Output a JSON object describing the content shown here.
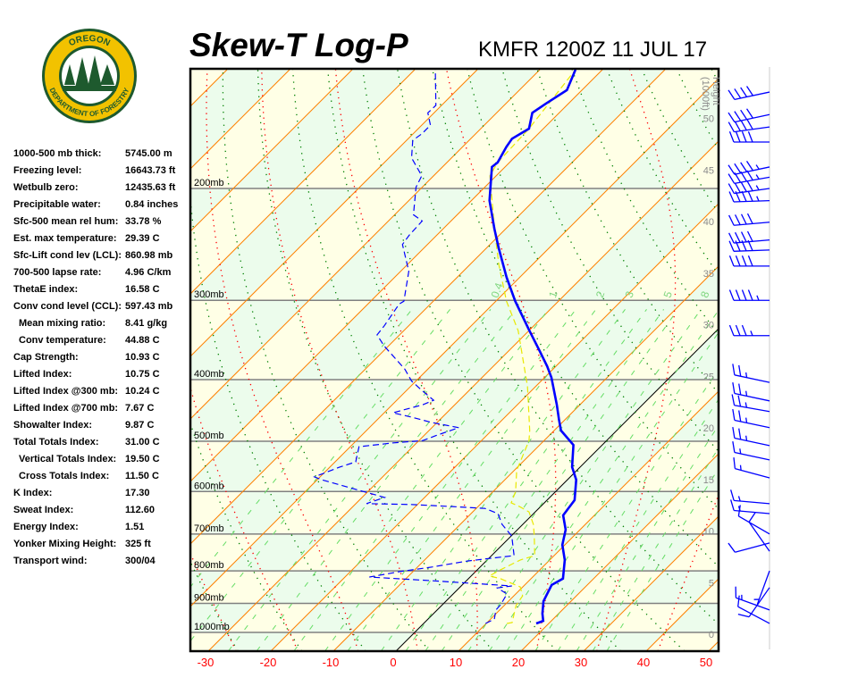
{
  "logo": {
    "text_top": "OREGON",
    "text_bottom": "DEPARTMENT OF FORESTRY"
  },
  "header": {
    "title": "Skew-T Log-P",
    "station": "KMFR 1200Z 11 JUL 17"
  },
  "stats": [
    {
      "label": "1000-500 mb thick:",
      "value": "5745.00 m"
    },
    {
      "label": "Freezing level:",
      "value": "16643.73 ft"
    },
    {
      "label": "Wetbulb zero:",
      "value": "12435.63 ft"
    },
    {
      "label": "Precipitable water:",
      "value": "0.84 inches"
    },
    {
      "label": "Sfc-500 mean rel hum:",
      "value": "33.78 %"
    },
    {
      "label": "Est. max temperature:",
      "value": "29.39 C"
    },
    {
      "label": "Sfc-Lift cond lev (LCL):",
      "value": "860.98 mb"
    },
    {
      "label": "700-500 lapse rate:",
      "value": "4.96 C/km"
    },
    {
      "label": "ThetaE index:",
      "value": "16.58 C"
    },
    {
      "label": "Conv cond level (CCL):",
      "value": "597.43 mb"
    },
    {
      "label": "Mean mixing ratio:",
      "value": "8.41 g/kg",
      "indent": true
    },
    {
      "label": "Conv temperature:",
      "value": "44.88 C",
      "indent": true
    },
    {
      "label": "Cap Strength:",
      "value": "10.93 C"
    },
    {
      "label": "Lifted Index:",
      "value": "10.75 C"
    },
    {
      "label": "Lifted Index @300 mb:",
      "value": "10.24 C"
    },
    {
      "label": "Lifted Index @700 mb:",
      "value": "7.67 C"
    },
    {
      "label": "Showalter Index:",
      "value": "9.87 C"
    },
    {
      "label": "Total Totals Index:",
      "value": "31.00 C"
    },
    {
      "label": "Vertical Totals Index:",
      "value": "19.50 C",
      "indent": true
    },
    {
      "label": "Cross Totals Index:",
      "value": "11.50 C",
      "indent": true
    },
    {
      "label": "K Index:",
      "value": "17.30"
    },
    {
      "label": "Sweat Index:",
      "value": "112.60"
    },
    {
      "label": "Energy Index:",
      "value": "1.51"
    },
    {
      "label": "Yonker Mixing Height:",
      "value": "325 ft"
    },
    {
      "label": "Transport wind:",
      "value": "300/04"
    }
  ],
  "chart_data": {
    "type": "line",
    "title": "Skew-T Log-P",
    "x_axis": {
      "ticks": [
        -30,
        -20,
        -10,
        0,
        10,
        20,
        30,
        40,
        50
      ],
      "range_at_bottom": [
        -33,
        52
      ]
    },
    "pressure_axis": {
      "scale": "log",
      "range": [
        1070,
        130
      ],
      "lines": [
        200,
        300,
        400,
        500,
        600,
        700,
        800,
        900,
        1000
      ],
      "labels": [
        "200mb",
        "300mb",
        "400mb",
        "500mb",
        "600mb",
        "700mb",
        "800mb",
        "900mb",
        "1000mb"
      ]
    },
    "height_axis": {
      "label_line1": "Height",
      "label_line2": "(1000ft)",
      "ticks": [
        0,
        5,
        10,
        15,
        20,
        25,
        30,
        35,
        40,
        45,
        50
      ]
    },
    "isotherm_step": 10,
    "dry_adiabat_step": 10,
    "moist_adiabats_1000mb": [
      -30,
      -20,
      -10,
      0,
      10,
      20,
      30,
      40
    ],
    "mixing_ratio_lines": [
      0.1,
      0.2,
      0.4,
      0.6,
      1,
      1.5,
      2,
      3,
      4,
      5,
      6,
      8,
      10,
      12,
      16,
      20,
      24,
      28,
      32
    ],
    "mixing_ratio_labels": [
      "0.4",
      "1",
      "2",
      "3",
      "5",
      "8"
    ],
    "colors": {
      "temperature": "#0000ff",
      "dewpoint": "#0000ff",
      "wetbulb": "#e8e800",
      "isotherm": "#ff8000",
      "zero_isotherm": "#000000",
      "dry_adiabat": "#008000",
      "moist_adiabat": "#ff0000",
      "mixing_ratio": "#66dd66",
      "pressure_line": "#808080",
      "band_a": "#ffffe6",
      "band_b": "#ecfcec",
      "wind": "#0000ff"
    },
    "series": [
      {
        "id": "temperature",
        "style": "solid-thick",
        "points": [
          [
            968,
            18.0
          ],
          [
            959,
            18.7
          ],
          [
            934,
            17.4
          ],
          [
            893,
            15.6
          ],
          [
            842,
            14.3
          ],
          [
            823,
            15.1
          ],
          [
            769,
            12.4
          ],
          [
            728,
            9.6
          ],
          [
            689,
            7.7
          ],
          [
            654,
            5.0
          ],
          [
            619,
            4.4
          ],
          [
            575,
            1.4
          ],
          [
            549,
            -1.3
          ],
          [
            507,
            -4.6
          ],
          [
            481,
            -8.9
          ],
          [
            463,
            -10.9
          ],
          [
            438,
            -13.7
          ],
          [
            397,
            -18.9
          ],
          [
            381,
            -21.4
          ],
          [
            359,
            -25.3
          ],
          [
            335,
            -29.9
          ],
          [
            301,
            -36.9
          ],
          [
            276,
            -42.1
          ],
          [
            248,
            -48.1
          ],
          [
            232,
            -51.7
          ],
          [
            209,
            -57.1
          ],
          [
            185,
            -62.1
          ],
          [
            182,
            -61.9
          ],
          [
            172,
            -63.0
          ],
          [
            167,
            -63.4
          ],
          [
            161,
            -62.3
          ],
          [
            152,
            -64.3
          ],
          [
            147,
            -63.6
          ],
          [
            140,
            -62.4
          ],
          [
            130,
            -64.3
          ]
        ]
      },
      {
        "id": "dewpoint",
        "style": "dashed",
        "points": [
          [
            968,
            9.9
          ],
          [
            953,
            10.6
          ],
          [
            922,
            9.4
          ],
          [
            904,
            9.3
          ],
          [
            870,
            8.6
          ],
          [
            851,
            6.1
          ],
          [
            845,
            8.1
          ],
          [
            829,
            -5.6
          ],
          [
            818,
            -16.1
          ],
          [
            802,
            -12.1
          ],
          [
            789,
            -7.7
          ],
          [
            772,
            -3.0
          ],
          [
            757,
            3.6
          ],
          [
            705,
            0.1
          ],
          [
            676,
            -3.3
          ],
          [
            650,
            -5.7
          ],
          [
            638,
            -8.6
          ],
          [
            634,
            -13.6
          ],
          [
            629,
            -21.0
          ],
          [
            627,
            -28.3
          ],
          [
            613,
            -26.4
          ],
          [
            600,
            -30.7
          ],
          [
            575,
            -39.3
          ],
          [
            569,
            -40.9
          ],
          [
            549,
            -38.4
          ],
          [
            539,
            -36.7
          ],
          [
            510,
            -38.6
          ],
          [
            503,
            -33.7
          ],
          [
            499,
            -29.4
          ],
          [
            490,
            -28.1
          ],
          [
            476,
            -25.7
          ],
          [
            467,
            -30.9
          ],
          [
            458,
            -35.0
          ],
          [
            451,
            -38.6
          ],
          [
            438,
            -35.1
          ],
          [
            431,
            -34.1
          ],
          [
            417,
            -37.3
          ],
          [
            402,
            -40.7
          ],
          [
            385,
            -43.7
          ],
          [
            354,
            -50.7
          ],
          [
            340,
            -53.6
          ],
          [
            329,
            -53.9
          ],
          [
            304,
            -55.0
          ],
          [
            301,
            -54.7
          ],
          [
            270,
            -58.7
          ],
          [
            245,
            -64.0
          ],
          [
            237,
            -64.4
          ],
          [
            225,
            -64.6
          ],
          [
            220,
            -67.0
          ],
          [
            199,
            -71.0
          ],
          [
            191,
            -71.9
          ],
          [
            179,
            -76.4
          ],
          [
            168,
            -79.0
          ],
          [
            164,
            -78.6
          ],
          [
            159,
            -78.6
          ],
          [
            152,
            -81.0
          ],
          [
            148,
            -80.9
          ],
          [
            130,
            -86.7
          ]
        ]
      },
      {
        "id": "wetbulb",
        "style": "dashed-yellow",
        "points": [
          [
            968,
            13.3
          ],
          [
            965,
            14.0
          ],
          [
            907,
            11.9
          ],
          [
            876,
            11.4
          ],
          [
            848,
            9.6
          ],
          [
            823,
            5.1
          ],
          [
            815,
            2.9
          ],
          [
            797,
            3.7
          ],
          [
            769,
            5.3
          ],
          [
            757,
            6.9
          ],
          [
            705,
            3.7
          ],
          [
            676,
            1.7
          ],
          [
            646,
            -1.0
          ],
          [
            634,
            -3.3
          ],
          [
            625,
            -5.3
          ],
          [
            600,
            -6.4
          ],
          [
            556,
            -9.6
          ],
          [
            499,
            -12.4
          ],
          [
            481,
            -13.9
          ],
          [
            410,
            -21.3
          ],
          [
            335,
            -31.7
          ],
          [
            301,
            -38.3
          ],
          [
            264,
            -45.3
          ],
          [
            232,
            -51.7
          ],
          [
            191,
            -61.0
          ],
          [
            182,
            -61.9
          ],
          [
            161,
            -62.3
          ],
          [
            130,
            -64.3
          ]
        ]
      }
    ],
    "wind_barbs": [
      {
        "p": 141,
        "dir": 258,
        "spd": 40
      },
      {
        "p": 153,
        "dir": 258,
        "spd": 40
      },
      {
        "p": 160,
        "dir": 262,
        "spd": 40
      },
      {
        "p": 169,
        "dir": 270,
        "spd": 40
      },
      {
        "p": 185,
        "dir": 258,
        "spd": 45
      },
      {
        "p": 192,
        "dir": 260,
        "spd": 45
      },
      {
        "p": 200,
        "dir": 262,
        "spd": 45
      },
      {
        "p": 209,
        "dir": 268,
        "spd": 45
      },
      {
        "p": 226,
        "dir": 265,
        "spd": 40
      },
      {
        "p": 241,
        "dir": 265,
        "spd": 40
      },
      {
        "p": 250,
        "dir": 268,
        "spd": 40
      },
      {
        "p": 265,
        "dir": 270,
        "spd": 40
      },
      {
        "p": 300,
        "dir": 270,
        "spd": 45
      },
      {
        "p": 341,
        "dir": 270,
        "spd": 35
      },
      {
        "p": 404,
        "dir": 282,
        "spd": 25
      },
      {
        "p": 432,
        "dir": 282,
        "spd": 25
      },
      {
        "p": 449,
        "dir": 280,
        "spd": 25
      },
      {
        "p": 476,
        "dir": 282,
        "spd": 25
      },
      {
        "p": 508,
        "dir": 282,
        "spd": 25
      },
      {
        "p": 535,
        "dir": 282,
        "spd": 15
      },
      {
        "p": 571,
        "dir": 285,
        "spd": 15
      },
      {
        "p": 627,
        "dir": 275,
        "spd": 15
      },
      {
        "p": 650,
        "dir": 275,
        "spd": 15
      },
      {
        "p": 700,
        "dir": 300,
        "spd": 10
      },
      {
        "p": 723,
        "dir": 255,
        "spd": 10
      },
      {
        "p": 745,
        "dir": 325,
        "spd": 10
      },
      {
        "p": 800,
        "dir": 200,
        "spd": 5
      },
      {
        "p": 850,
        "dir": 215,
        "spd": 10
      },
      {
        "p": 922,
        "dir": 290,
        "spd": 15
      },
      {
        "p": 968,
        "dir": 298,
        "spd": 10
      }
    ]
  }
}
